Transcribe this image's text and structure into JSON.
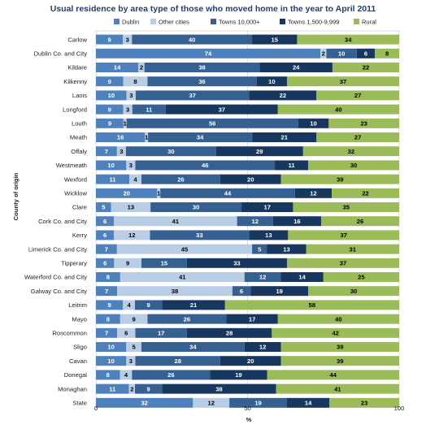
{
  "chart_data": {
    "type": "bar",
    "stacked": "100%",
    "orientation": "horizontal",
    "title": "Usual residence by area type of those who moved home in the year to April 2011",
    "xlabel": "%",
    "ylabel": "County of origin",
    "xlim": [
      0,
      100
    ],
    "x_ticks": [
      "0",
      "50",
      "100"
    ],
    "legend_position": "top",
    "categories": [
      "Carlow",
      "Dublin Co. and City",
      "Kildare",
      "Kilkenny",
      "Laois",
      "Longford",
      "Louth",
      "Meath",
      "Offaly",
      "Westmeath",
      "Wexford",
      "Wicklow",
      "Clare",
      "Cork Co. and City",
      "Kerry",
      "Limerick Co. and City",
      "Tipperary",
      "Waterford Co. and City",
      "Galway Co. and City",
      "Leitrim",
      "Mayo",
      "Roscommon",
      "Sligo",
      "Cavan",
      "Donegal",
      "Monaghan",
      "State"
    ],
    "series": [
      {
        "name": "Dublin",
        "color": "#4f81bd",
        "label_color": "#ffffff",
        "values": [
          9,
          74,
          14,
          9,
          10,
          9,
          9,
          16,
          7,
          10,
          11,
          20,
          5,
          6,
          6,
          7,
          6,
          8,
          7,
          9,
          8,
          7,
          10,
          10,
          8,
          11,
          32
        ]
      },
      {
        "name": "Other cities",
        "color": "#b9cde5",
        "label_color": "#000000",
        "values": [
          3,
          2,
          2,
          8,
          3,
          3,
          1,
          1,
          3,
          3,
          4,
          1,
          13,
          41,
          12,
          45,
          9,
          41,
          38,
          4,
          9,
          6,
          5,
          3,
          4,
          2,
          12
        ]
      },
      {
        "name": "Towns 10,000+",
        "color": "#376092",
        "label_color": "#ffffff",
        "values": [
          40,
          10,
          38,
          36,
          37,
          11,
          56,
          34,
          30,
          46,
          26,
          44,
          30,
          12,
          33,
          5,
          15,
          12,
          6,
          9,
          26,
          17,
          34,
          28,
          26,
          9,
          19
        ]
      },
      {
        "name": "Towns 1,500-9,999",
        "color": "#17375e",
        "label_color": "#ffffff",
        "values": [
          15,
          6,
          24,
          10,
          22,
          37,
          10,
          21,
          29,
          11,
          20,
          12,
          17,
          16,
          13,
          13,
          33,
          14,
          19,
          21,
          17,
          28,
          12,
          20,
          19,
          38,
          14
        ]
      },
      {
        "name": "Rural",
        "color": "#9bbb59",
        "label_color": "#000000",
        "values": [
          34,
          8,
          22,
          37,
          27,
          40,
          23,
          27,
          32,
          30,
          39,
          22,
          35,
          26,
          37,
          31,
          37,
          25,
          30,
          58,
          40,
          42,
          39,
          39,
          44,
          41,
          23
        ]
      }
    ]
  }
}
